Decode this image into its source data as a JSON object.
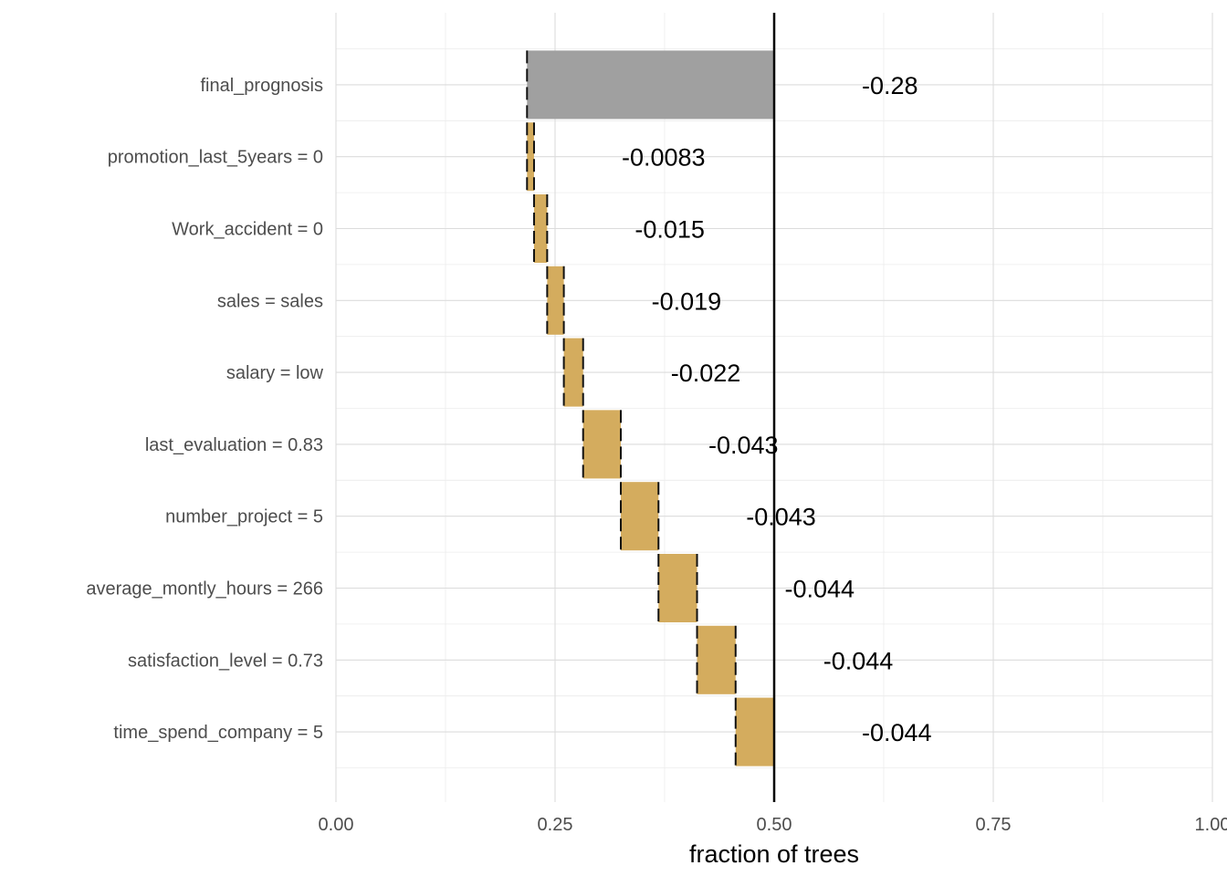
{
  "chart_data": {
    "type": "bar",
    "subtype": "waterfall",
    "xlabel": "fraction of trees",
    "xlim": [
      0,
      1
    ],
    "x_ticks": [
      0,
      0.25,
      0.5,
      0.75,
      1
    ],
    "x_tick_labels": [
      "0.00",
      "0.25",
      "0.50",
      "0.75",
      "1.00"
    ],
    "grid": true,
    "reference_line_x": 0.5,
    "colors": {
      "total": "#a0a0a0",
      "contribution": "#d4ac5e",
      "reference": "#000000"
    },
    "categories": [
      "final_prognosis",
      "promotion_last_5years = 0",
      "Work_accident = 0",
      "sales = sales",
      "salary = low",
      "last_evaluation = 0.83",
      "number_project = 5",
      "average_montly_hours = 266",
      "satisfaction_level = 0.73",
      "time_spend_company = 5"
    ],
    "bars": [
      {
        "start": 0.5,
        "end": 0.218,
        "label": "-0.28",
        "kind": "total"
      },
      {
        "start": 0.218,
        "end": 0.226,
        "label": "-0.0083",
        "kind": "contribution"
      },
      {
        "start": 0.226,
        "end": 0.241,
        "label": "-0.015",
        "kind": "contribution"
      },
      {
        "start": 0.241,
        "end": 0.26,
        "label": "-0.019",
        "kind": "contribution"
      },
      {
        "start": 0.26,
        "end": 0.282,
        "label": "-0.022",
        "kind": "contribution"
      },
      {
        "start": 0.282,
        "end": 0.325,
        "label": "-0.043",
        "kind": "contribution"
      },
      {
        "start": 0.325,
        "end": 0.368,
        "label": "-0.043",
        "kind": "contribution"
      },
      {
        "start": 0.368,
        "end": 0.412,
        "label": "-0.044",
        "kind": "contribution"
      },
      {
        "start": 0.412,
        "end": 0.456,
        "label": "-0.044",
        "kind": "contribution"
      },
      {
        "start": 0.456,
        "end": 0.5,
        "label": "-0.044",
        "kind": "contribution"
      }
    ]
  }
}
